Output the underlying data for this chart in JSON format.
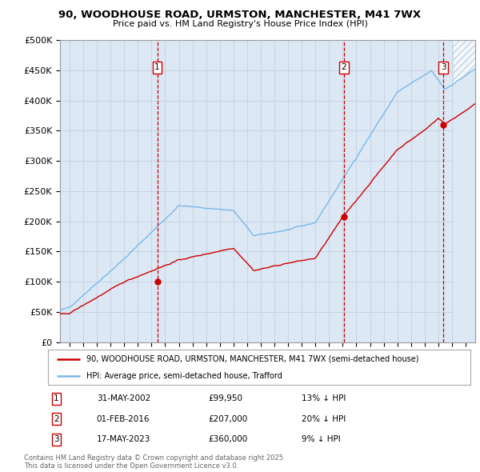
{
  "title1": "90, WOODHOUSE ROAD, URMSTON, MANCHESTER, M41 7WX",
  "title2": "Price paid vs. HM Land Registry's House Price Index (HPI)",
  "ylabel_ticks": [
    "£0",
    "£50K",
    "£100K",
    "£150K",
    "£200K",
    "£250K",
    "£300K",
    "£350K",
    "£400K",
    "£450K",
    "£500K"
  ],
  "ytick_values": [
    0,
    50000,
    100000,
    150000,
    200000,
    250000,
    300000,
    350000,
    400000,
    450000,
    500000
  ],
  "ylim": [
    0,
    500000
  ],
  "xlim_start": 1995.3,
  "xlim_end": 2025.7,
  "legend_line1": "90, WOODHOUSE ROAD, URMSTON, MANCHESTER, M41 7WX (semi-detached house)",
  "legend_line2": "HPI: Average price, semi-detached house, Trafford",
  "sale1_date": "31-MAY-2002",
  "sale1_price": "£99,950",
  "sale1_hpi": "13% ↓ HPI",
  "sale1_label": "1",
  "sale1_x": 2002.42,
  "sale1_y": 99950,
  "sale2_date": "01-FEB-2016",
  "sale2_price": "£207,000",
  "sale2_hpi": "20% ↓ HPI",
  "sale2_label": "2",
  "sale2_x": 2016.08,
  "sale2_y": 207000,
  "sale3_date": "17-MAY-2023",
  "sale3_price": "£360,000",
  "sale3_hpi": "9% ↓ HPI",
  "sale3_label": "3",
  "sale3_x": 2023.38,
  "sale3_y": 360000,
  "hpi_color": "#7ab8e8",
  "sold_color": "#cc0000",
  "vline_color": "#cc0000",
  "grid_color": "#c8d4e4",
  "bg_color": "#dce8f4",
  "plot_bg": "#ffffff",
  "footer": "Contains HM Land Registry data © Crown copyright and database right 2025.\nThis data is licensed under the Open Government Licence v3.0."
}
